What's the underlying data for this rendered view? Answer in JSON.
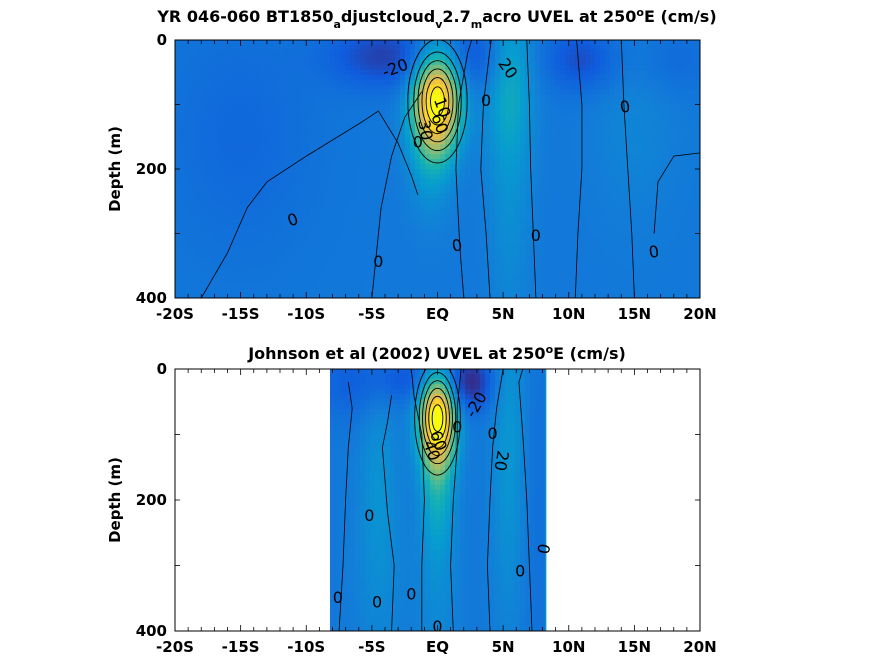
{
  "chart_data": [
    {
      "type": "heatmap",
      "title_parts": {
        "a": "YR 046-060 BT1850",
        "sub1": "a",
        "b": "djustcloud",
        "sub2": "v",
        "c": "2.7",
        "sub3": "m",
        "d": "acro UVEL at 250",
        "sup": "o",
        "e": "E (cm/s)"
      },
      "ylabel": "Depth (m)",
      "xlim": [
        -20,
        20
      ],
      "ylim": [
        0,
        400
      ],
      "y_reversed": true,
      "xticks": [
        {
          "v": -20,
          "label": "-20S"
        },
        {
          "v": -15,
          "label": "-15S"
        },
        {
          "v": -10,
          "label": "-10S"
        },
        {
          "v": -5,
          "label": "-5S"
        },
        {
          "v": 0,
          "label": "EQ"
        },
        {
          "v": 5,
          "label": "5N"
        },
        {
          "v": 10,
          "label": "10N"
        },
        {
          "v": 15,
          "label": "15N"
        },
        {
          "v": 20,
          "label": "20N"
        }
      ],
      "yticks": [
        {
          "v": 0,
          "label": "0"
        },
        {
          "v": 200,
          "label": "200"
        },
        {
          "v": 400,
          "label": "400"
        }
      ],
      "data_extent": [
        -20,
        20
      ],
      "background_color": "#20b5a8",
      "features": [
        {
          "lon": 0,
          "depth": 95,
          "sx": 1.3,
          "sy": 55,
          "amp": 95
        },
        {
          "lon": -0.5,
          "depth": 150,
          "sx": 1.2,
          "sy": 80,
          "amp": 25
        },
        {
          "lon": 5.5,
          "depth": 60,
          "sx": 1.3,
          "sy": 90,
          "amp": 25
        },
        {
          "lon": 5.5,
          "depth": 250,
          "sx": 1.2,
          "sy": 150,
          "amp": 12
        },
        {
          "lon": 15,
          "depth": 120,
          "sx": 2.5,
          "sy": 120,
          "amp": 8
        },
        {
          "lon": -4,
          "depth": 25,
          "sx": 3,
          "sy": 35,
          "amp": -30
        },
        {
          "lon": 3,
          "depth": 25,
          "sx": 1.5,
          "sy": 40,
          "amp": -20
        },
        {
          "lon": 11,
          "depth": 30,
          "sx": 2,
          "sy": 35,
          "amp": -25
        },
        {
          "lon": -15,
          "depth": 150,
          "sx": 4,
          "sy": 130,
          "amp": -10
        },
        {
          "lon": 18,
          "depth": 30,
          "sx": 2,
          "sy": 40,
          "amp": -10
        }
      ],
      "contour_labels": [
        {
          "text": "-20",
          "lon": -3.2,
          "depth": 45,
          "rot": -20
        },
        {
          "text": "20",
          "lon": 5.3,
          "depth": 45,
          "rot": 55
        },
        {
          "text": "0",
          "lon": 3.7,
          "depth": 95,
          "rot": 0
        },
        {
          "text": "0",
          "lon": 14.3,
          "depth": 105,
          "rot": -10
        },
        {
          "text": "10",
          "lon": 0.3,
          "depth": 105,
          "rot": 70
        },
        {
          "text": "60",
          "lon": 0.1,
          "depth": 130,
          "rot": 70
        },
        {
          "text": "30",
          "lon": -1.0,
          "depth": 140,
          "rot": 80
        },
        {
          "text": "0",
          "lon": -1.5,
          "depth": 160,
          "rot": 0
        },
        {
          "text": "0",
          "lon": -11,
          "depth": 280,
          "rot": -20
        },
        {
          "text": "0",
          "lon": -4.5,
          "depth": 345,
          "rot": 0
        },
        {
          "text": "0",
          "lon": 1.5,
          "depth": 320,
          "rot": -10
        },
        {
          "text": "0",
          "lon": 7.5,
          "depth": 305,
          "rot": 0
        },
        {
          "text": "0",
          "lon": 16.5,
          "depth": 330,
          "rot": -10
        }
      ],
      "zero_contours": [
        [
          [
            -18,
            400
          ],
          [
            -16,
            330
          ],
          [
            -14.5,
            260
          ],
          [
            -13,
            220
          ],
          [
            -10,
            180
          ],
          [
            -6,
            130
          ],
          [
            -4.5,
            110
          ],
          [
            -3,
            160
          ],
          [
            -2,
            210
          ],
          [
            -1.5,
            240
          ]
        ],
        [
          [
            -5,
            400
          ],
          [
            -4.7,
            340
          ],
          [
            -4.3,
            260
          ],
          [
            -3.5,
            180
          ],
          [
            -2.5,
            120
          ],
          [
            -1.2,
            80
          ]
        ],
        [
          [
            2,
            400
          ],
          [
            1.7,
            320
          ],
          [
            1.4,
            200
          ],
          [
            1.6,
            100
          ],
          [
            2.3,
            20
          ],
          [
            2.6,
            0
          ]
        ],
        [
          [
            4,
            400
          ],
          [
            3.7,
            300
          ],
          [
            3.3,
            200
          ],
          [
            3.5,
            100
          ],
          [
            3.9,
            30
          ],
          [
            4.1,
            0
          ]
        ],
        [
          [
            7.5,
            400
          ],
          [
            7.3,
            300
          ],
          [
            7.1,
            200
          ],
          [
            7.0,
            100
          ],
          [
            6.8,
            0
          ]
        ],
        [
          [
            10.5,
            400
          ],
          [
            10.7,
            300
          ],
          [
            11,
            200
          ],
          [
            11,
            100
          ],
          [
            10.6,
            0
          ]
        ],
        [
          [
            14,
            0
          ],
          [
            14.2,
            100
          ],
          [
            14.5,
            200
          ],
          [
            14.8,
            300
          ],
          [
            15,
            400
          ]
        ],
        [
          [
            16.5,
            300
          ],
          [
            16.8,
            220
          ],
          [
            18,
            180
          ],
          [
            20,
            175
          ]
        ]
      ]
    },
    {
      "type": "heatmap",
      "title_parts": {
        "a": "Johnson et al (2002) UVEL at 250",
        "sup": "o",
        "e": "E (cm/s)"
      },
      "ylabel": "Depth (m)",
      "xlim": [
        -20,
        20
      ],
      "ylim": [
        0,
        400
      ],
      "y_reversed": true,
      "xticks": [
        {
          "v": -20,
          "label": "-20S"
        },
        {
          "v": -15,
          "label": "-15S"
        },
        {
          "v": -10,
          "label": "-10S"
        },
        {
          "v": -5,
          "label": "-5S"
        },
        {
          "v": 0,
          "label": "EQ"
        },
        {
          "v": 5,
          "label": "5N"
        },
        {
          "v": 10,
          "label": "10N"
        },
        {
          "v": 15,
          "label": "15N"
        },
        {
          "v": 20,
          "label": "20N"
        }
      ],
      "yticks": [
        {
          "v": 0,
          "label": "0"
        },
        {
          "v": 200,
          "label": "200"
        },
        {
          "v": 400,
          "label": "400"
        }
      ],
      "data_extent": [
        -8,
        8.3
      ],
      "background_color": "#1fb3a8",
      "features": [
        {
          "lon": 0,
          "depth": 75,
          "sx": 1.0,
          "sy": 50,
          "amp": 100
        },
        {
          "lon": 0,
          "depth": 160,
          "sx": 0.9,
          "sy": 80,
          "amp": 30
        },
        {
          "lon": 5.5,
          "depth": 120,
          "sx": 1.0,
          "sy": 200,
          "amp": 18
        },
        {
          "lon": -4.5,
          "depth": 150,
          "sx": 1.0,
          "sy": 120,
          "amp": 12
        },
        {
          "lon": -4.5,
          "depth": 320,
          "sx": 1.5,
          "sy": 120,
          "amp": 8
        },
        {
          "lon": 0,
          "depth": 340,
          "sx": 1.2,
          "sy": 120,
          "amp": 10
        },
        {
          "lon": 2.5,
          "depth": 20,
          "sx": 1.2,
          "sy": 30,
          "amp": -40
        },
        {
          "lon": -2,
          "depth": 15,
          "sx": 2.0,
          "sy": 25,
          "amp": -20
        },
        {
          "lon": -6.5,
          "depth": 20,
          "sx": 2.0,
          "sy": 40,
          "amp": -15
        },
        {
          "lon": 7.5,
          "depth": 200,
          "sx": 1.0,
          "sy": 200,
          "amp": -6
        }
      ],
      "contour_labels": [
        {
          "text": "-20",
          "lon": 3.0,
          "depth": 55,
          "rot": -60
        },
        {
          "text": "0",
          "lon": 1.5,
          "depth": 90,
          "rot": 0
        },
        {
          "text": "0",
          "lon": 4.2,
          "depth": 100,
          "rot": 0
        },
        {
          "text": "20",
          "lon": 4.8,
          "depth": 140,
          "rot": 100
        },
        {
          "text": "60",
          "lon": 0.0,
          "depth": 110,
          "rot": 70
        },
        {
          "text": "40",
          "lon": -0.5,
          "depth": 125,
          "rot": 70
        },
        {
          "text": "0",
          "lon": -5.2,
          "depth": 225,
          "rot": 0
        },
        {
          "text": "0",
          "lon": 8.2,
          "depth": 275,
          "rot": -80
        },
        {
          "text": "0",
          "lon": 6.3,
          "depth": 310,
          "rot": 0
        },
        {
          "text": "0",
          "lon": -7.6,
          "depth": 350,
          "rot": 0
        },
        {
          "text": "0",
          "lon": -4.6,
          "depth": 357,
          "rot": 0
        },
        {
          "text": "0",
          "lon": -2.0,
          "depth": 345,
          "rot": 0
        },
        {
          "text": "0",
          "lon": 0,
          "depth": 395,
          "rot": 0
        }
      ],
      "zero_contours": [
        [
          [
            -7.5,
            400
          ],
          [
            -7.2,
            300
          ],
          [
            -7,
            200
          ],
          [
            -6.8,
            120
          ],
          [
            -6.5,
            60
          ],
          [
            -6.8,
            20
          ]
        ],
        [
          [
            -3.5,
            400
          ],
          [
            -3.3,
            300
          ],
          [
            -3.8,
            220
          ],
          [
            -4.2,
            120
          ],
          [
            -3.8,
            80
          ],
          [
            -3.5,
            40
          ]
        ],
        [
          [
            -1.2,
            400
          ],
          [
            -1.2,
            300
          ],
          [
            -1.0,
            200
          ],
          [
            -1.2,
            100
          ],
          [
            -1.8,
            40
          ],
          [
            -2,
            0
          ]
        ],
        [
          [
            1.2,
            400
          ],
          [
            1.0,
            300
          ],
          [
            1.2,
            200
          ],
          [
            1.5,
            120
          ],
          [
            1.5,
            60
          ],
          [
            1.8,
            0
          ]
        ],
        [
          [
            4,
            400
          ],
          [
            3.8,
            300
          ],
          [
            4,
            200
          ],
          [
            4.2,
            120
          ],
          [
            4.5,
            60
          ],
          [
            5,
            0
          ]
        ],
        [
          [
            7.2,
            400
          ],
          [
            7.0,
            300
          ],
          [
            6.8,
            200
          ],
          [
            6.5,
            100
          ],
          [
            6.2,
            20
          ],
          [
            6.5,
            0
          ]
        ]
      ]
    }
  ]
}
